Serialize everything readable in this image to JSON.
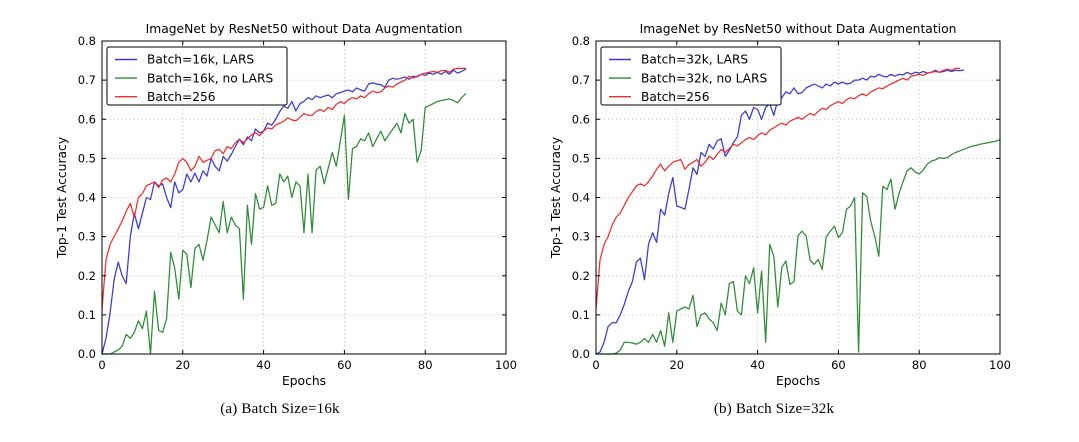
{
  "page": {
    "background": "#ffffff",
    "figure_type": "matplotlib-style line charts, side by side"
  },
  "colors": {
    "lars_line": "#3a3ad0",
    "no_lars_line": "#2e8b35",
    "baseline_line": "#ee2e2e",
    "grid": "#b3b3b3",
    "axis": "#000000",
    "legend_background": "#ffffff"
  },
  "chart_data": [
    {
      "type": "line",
      "title": "ImageNet by ResNet50 without Data Augmentation",
      "xlabel": "Epochs",
      "ylabel": "Top-1 Test Accuracy",
      "caption": "(a) Batch Size=16k",
      "xlim": [
        0,
        100
      ],
      "ylim": [
        0.0,
        0.8
      ],
      "xticks": [
        0,
        20,
        40,
        60,
        80,
        100
      ],
      "yticks": [
        0.0,
        0.1,
        0.2,
        0.3,
        0.4,
        0.5,
        0.6,
        0.7,
        0.8
      ],
      "grid": true,
      "legend_position": "upper-left",
      "series": [
        {
          "name": "Batch=16k, LARS",
          "color": "#3a3ad0",
          "x_start": 0,
          "x_step": 1,
          "values": [
            0.0,
            0.04,
            0.105,
            0.19,
            0.235,
            0.2,
            0.18,
            0.3,
            0.36,
            0.32,
            0.36,
            0.4,
            0.395,
            0.44,
            0.43,
            0.435,
            0.4,
            0.374,
            0.44,
            0.412,
            0.42,
            0.46,
            0.44,
            0.462,
            0.44,
            0.468,
            0.455,
            0.5,
            0.48,
            0.468,
            0.505,
            0.493,
            0.51,
            0.53,
            0.549,
            0.535,
            0.555,
            0.545,
            0.575,
            0.565,
            0.57,
            0.59,
            0.585,
            0.6,
            0.62,
            0.634,
            0.628,
            0.645,
            0.621,
            0.64,
            0.646,
            0.655,
            0.65,
            0.66,
            0.655,
            0.659,
            0.662,
            0.655,
            0.665,
            0.668,
            0.672,
            0.675,
            0.67,
            0.68,
            0.675,
            0.672,
            0.69,
            0.693,
            0.69,
            0.688,
            0.682,
            0.7,
            0.705,
            0.702,
            0.705,
            0.708,
            0.702,
            0.71,
            0.708,
            0.715,
            0.712,
            0.718,
            0.715,
            0.72,
            0.715,
            0.722,
            0.715,
            0.725,
            0.718,
            0.722,
            0.728
          ]
        },
        {
          "name": "Batch=16k, no LARS",
          "color": "#2e8b35",
          "x_start": 0,
          "x_step": 1,
          "values": [
            0.0,
            0.0,
            0.0,
            0.005,
            0.01,
            0.02,
            0.05,
            0.04,
            0.055,
            0.085,
            0.065,
            0.11,
            0.0,
            0.16,
            0.06,
            0.055,
            0.09,
            0.26,
            0.22,
            0.14,
            0.265,
            0.255,
            0.17,
            0.27,
            0.28,
            0.24,
            0.29,
            0.35,
            0.33,
            0.31,
            0.39,
            0.31,
            0.35,
            0.33,
            0.32,
            0.14,
            0.38,
            0.28,
            0.41,
            0.37,
            0.375,
            0.43,
            0.38,
            0.385,
            0.46,
            0.44,
            0.455,
            0.4,
            0.44,
            0.43,
            0.31,
            0.46,
            0.31,
            0.47,
            0.48,
            0.435,
            0.475,
            0.515,
            0.48,
            0.545,
            0.61,
            0.395,
            0.525,
            0.53,
            0.55,
            0.545,
            0.565,
            0.53,
            0.55,
            0.57,
            0.545,
            0.56,
            0.575,
            0.59,
            0.565,
            0.615,
            0.59,
            0.6,
            0.49,
            0.52,
            0.63,
            0.635,
            0.64,
            0.645,
            0.648,
            0.65,
            0.652,
            0.648,
            0.642,
            0.655,
            0.665
          ]
        },
        {
          "name": "Batch=256",
          "color": "#ee2e2e",
          "x_start": 0,
          "x_step": 1,
          "values": [
            0.115,
            0.24,
            0.28,
            0.3,
            0.32,
            0.34,
            0.365,
            0.385,
            0.35,
            0.4,
            0.41,
            0.43,
            0.435,
            0.44,
            0.425,
            0.445,
            0.45,
            0.44,
            0.46,
            0.49,
            0.5,
            0.49,
            0.468,
            0.48,
            0.505,
            0.49,
            0.495,
            0.5,
            0.52,
            0.523,
            0.512,
            0.53,
            0.525,
            0.54,
            0.549,
            0.54,
            0.55,
            0.56,
            0.566,
            0.558,
            0.57,
            0.578,
            0.575,
            0.585,
            0.59,
            0.595,
            0.604,
            0.598,
            0.596,
            0.605,
            0.615,
            0.61,
            0.61,
            0.62,
            0.625,
            0.62,
            0.63,
            0.625,
            0.638,
            0.645,
            0.64,
            0.65,
            0.655,
            0.652,
            0.66,
            0.655,
            0.665,
            0.672,
            0.668,
            0.67,
            0.68,
            0.685,
            0.682,
            0.69,
            0.695,
            0.7,
            0.71,
            0.705,
            0.71,
            0.715,
            0.718,
            0.72,
            0.722,
            0.72,
            0.724,
            0.725,
            0.72,
            0.728,
            0.73,
            0.73,
            0.73
          ]
        }
      ]
    },
    {
      "type": "line",
      "title": "ImageNet by ResNet50 without Data Augmentation",
      "xlabel": "Epochs",
      "ylabel": "Top-1 Test Accuracy",
      "caption": "(b) Batch Size=32k",
      "xlim": [
        0,
        100
      ],
      "ylim": [
        0.0,
        0.8
      ],
      "xticks": [
        0,
        20,
        40,
        60,
        80,
        100
      ],
      "yticks": [
        0.0,
        0.1,
        0.2,
        0.3,
        0.4,
        0.5,
        0.6,
        0.7,
        0.8
      ],
      "grid": true,
      "legend_position": "upper-left",
      "series": [
        {
          "name": "Batch=32k, LARS",
          "color": "#3a3ad0",
          "x_start": 0,
          "x_step": 1,
          "values": [
            0.0,
            0.005,
            0.03,
            0.07,
            0.08,
            0.08,
            0.1,
            0.127,
            0.16,
            0.185,
            0.235,
            0.245,
            0.19,
            0.28,
            0.31,
            0.285,
            0.37,
            0.355,
            0.41,
            0.451,
            0.378,
            0.375,
            0.37,
            0.42,
            0.476,
            0.459,
            0.515,
            0.505,
            0.536,
            0.524,
            0.545,
            0.55,
            0.505,
            0.52,
            0.54,
            0.555,
            0.61,
            0.621,
            0.6,
            0.63,
            0.625,
            0.6,
            0.63,
            0.64,
            0.61,
            0.65,
            0.655,
            0.67,
            0.665,
            0.68,
            0.665,
            0.668,
            0.68,
            0.685,
            0.69,
            0.685,
            0.68,
            0.69,
            0.685,
            0.695,
            0.69,
            0.695,
            0.69,
            0.692,
            0.7,
            0.7,
            0.705,
            0.7,
            0.71,
            0.708,
            0.715,
            0.71,
            0.708,
            0.715,
            0.71,
            0.715,
            0.713,
            0.72,
            0.715,
            0.72,
            0.718,
            0.722,
            0.718,
            0.72,
            0.725,
            0.72,
            0.722,
            0.725,
            0.722,
            0.725,
            0.724,
            0.726
          ]
        },
        {
          "name": "Batch=32k, no LARS",
          "color": "#2e8b35",
          "x_start": 0,
          "x_step": 1,
          "values": [
            0.0,
            0.0,
            0.0,
            0.0,
            0.0,
            0.002,
            0.01,
            0.03,
            0.03,
            0.028,
            0.025,
            0.03,
            0.04,
            0.03,
            0.05,
            0.03,
            0.06,
            0.02,
            0.105,
            0.03,
            0.11,
            0.115,
            0.12,
            0.115,
            0.15,
            0.07,
            0.1,
            0.105,
            0.09,
            0.08,
            0.06,
            0.13,
            0.1,
            0.18,
            0.185,
            0.11,
            0.1,
            0.2,
            0.18,
            0.22,
            0.105,
            0.212,
            0.03,
            0.28,
            0.25,
            0.12,
            0.221,
            0.238,
            0.178,
            0.185,
            0.302,
            0.314,
            0.302,
            0.24,
            0.229,
            0.242,
            0.216,
            0.3,
            0.314,
            0.327,
            0.298,
            0.31,
            0.37,
            0.378,
            0.4,
            0.005,
            0.412,
            0.403,
            0.34,
            0.3,
            0.25,
            0.429,
            0.42,
            0.447,
            0.37,
            0.41,
            0.44,
            0.468,
            0.476,
            0.465,
            0.46,
            0.47,
            0.485,
            0.493,
            0.496,
            0.502,
            0.5,
            0.502,
            0.51,
            0.515,
            0.519,
            0.523,
            0.527,
            0.531,
            0.533,
            0.536,
            0.538,
            0.54,
            0.542,
            0.544,
            0.548
          ]
        },
        {
          "name": "Batch=256",
          "color": "#ee2e2e",
          "x_start": 0,
          "x_step": 1,
          "values": [
            0.115,
            0.24,
            0.28,
            0.3,
            0.33,
            0.35,
            0.36,
            0.38,
            0.4,
            0.415,
            0.43,
            0.435,
            0.43,
            0.44,
            0.455,
            0.472,
            0.485,
            0.468,
            0.48,
            0.49,
            0.494,
            0.497,
            0.472,
            0.484,
            0.49,
            0.497,
            0.48,
            0.49,
            0.506,
            0.497,
            0.51,
            0.523,
            0.515,
            0.525,
            0.536,
            0.532,
            0.54,
            0.548,
            0.553,
            0.548,
            0.558,
            0.565,
            0.56,
            0.572,
            0.578,
            0.585,
            0.59,
            0.585,
            0.595,
            0.6,
            0.605,
            0.6,
            0.608,
            0.615,
            0.61,
            0.62,
            0.628,
            0.625,
            0.635,
            0.64,
            0.645,
            0.64,
            0.65,
            0.655,
            0.652,
            0.66,
            0.665,
            0.66,
            0.67,
            0.675,
            0.68,
            0.678,
            0.685,
            0.69,
            0.695,
            0.7,
            0.705,
            0.7,
            0.71,
            0.712,
            0.715,
            0.712,
            0.718,
            0.72,
            0.722,
            0.72,
            0.725,
            0.728,
            0.725,
            0.73,
            0.73
          ]
        }
      ]
    }
  ]
}
